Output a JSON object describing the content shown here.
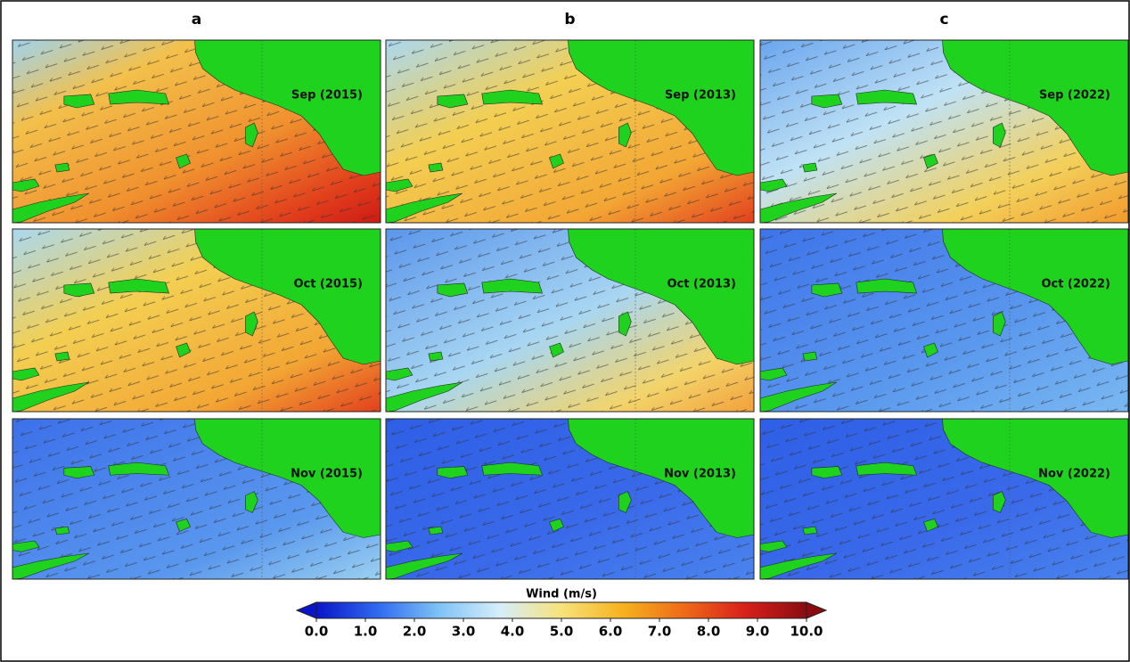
{
  "columns": [
    {
      "label": "a",
      "panels": [
        "Sep (2015)",
        "Oct (2015)",
        "Nov (2015)"
      ]
    },
    {
      "label": "b",
      "panels": [
        "Sep (2013)",
        "Oct (2013)",
        "Nov (2013)"
      ]
    },
    {
      "label": "c",
      "panels": [
        "Sep (2022)",
        "Oct (2022)",
        "Nov (2022)"
      ]
    }
  ],
  "colorbar": {
    "title": "Wind (m/s)",
    "lim": [
      0,
      10
    ],
    "colors": [
      "#0a14c8",
      "#2f6af0",
      "#7fc2f5",
      "#d6eefa",
      "#f7e27a",
      "#f6b21e",
      "#ef6a18",
      "#d8201a",
      "#8a0c10"
    ],
    "ticks": [
      {
        "value": 0,
        "label": "0.0"
      },
      {
        "value": 1,
        "label": "1.0"
      },
      {
        "value": 2,
        "label": "2.0"
      },
      {
        "value": 3,
        "label": "3.0"
      },
      {
        "value": 4,
        "label": "4.0"
      },
      {
        "value": 5,
        "label": "5.0"
      },
      {
        "value": 6,
        "label": "6.0"
      },
      {
        "value": 7,
        "label": "7.0"
      },
      {
        "value": 8,
        "label": "8.0"
      },
      {
        "value": 9,
        "label": "9.0"
      },
      {
        "value": 10,
        "label": "10.0"
      }
    ]
  }
}
